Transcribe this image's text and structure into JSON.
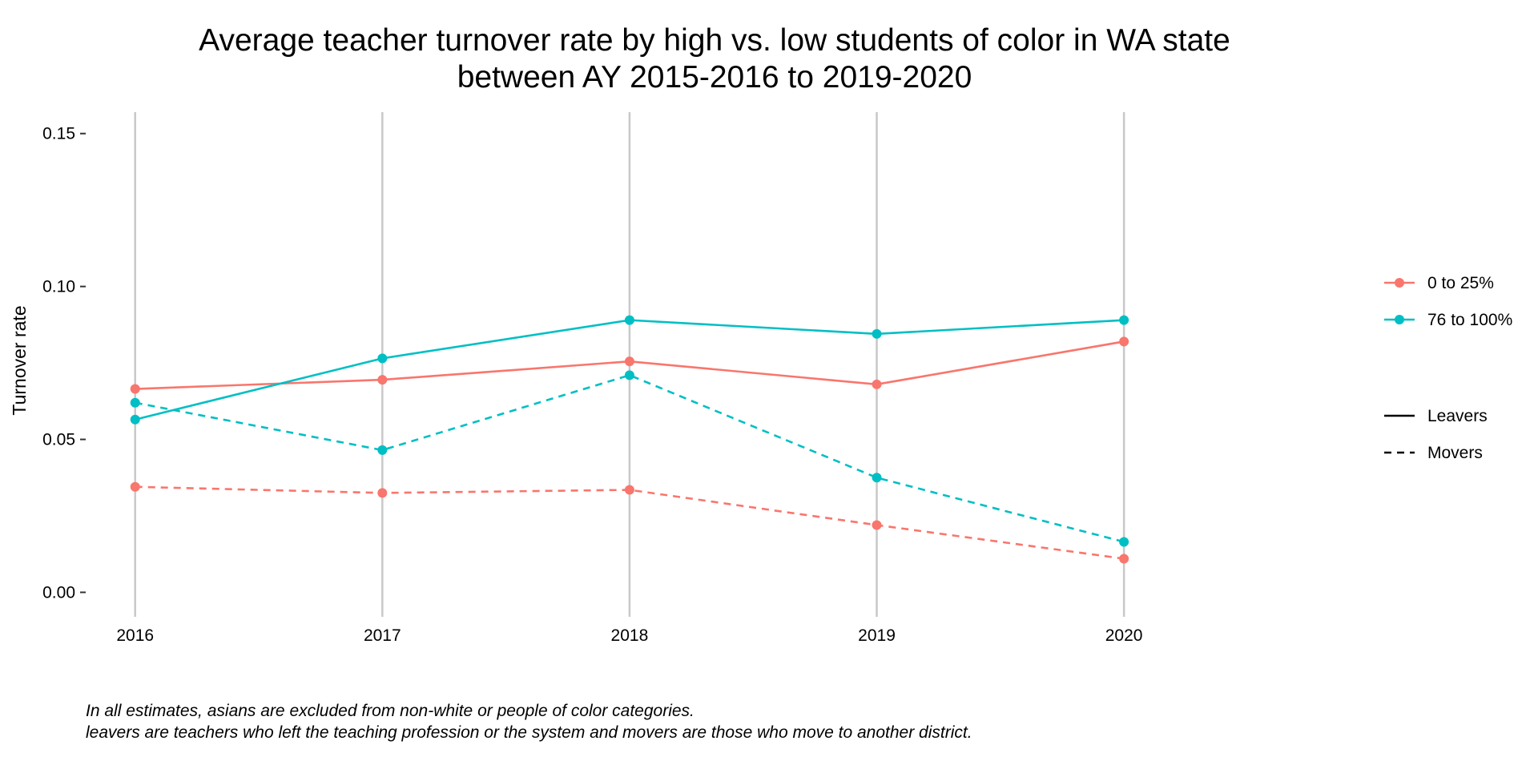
{
  "chart_data": {
    "type": "line",
    "title": "Average teacher turnover rate by high vs. low students of color in WA state",
    "subtitle": "between AY 2015-2016 to 2019-2020",
    "xlabel": "",
    "ylabel": "Turnover rate",
    "x": [
      2016,
      2017,
      2018,
      2019,
      2020
    ],
    "x_tick_labels": [
      "2016",
      "2017",
      "2018",
      "2019",
      "2020"
    ],
    "y_ticks": [
      0,
      0.05,
      0.1,
      0.15
    ],
    "y_tick_labels": [
      "0.00",
      "0.05",
      "0.10",
      "0.15"
    ],
    "xlim": [
      2015.8,
      2020.8
    ],
    "ylim": [
      -0.008,
      0.157
    ],
    "grid": "vertical",
    "legend_position": "right",
    "color_legend": [
      {
        "label": "0 to 25%",
        "color": "#F8766D"
      },
      {
        "label": "76 to 100%",
        "color": "#00BFC4"
      }
    ],
    "linetype_legend": [
      {
        "label": "Leavers",
        "dash": "solid"
      },
      {
        "label": "Movers",
        "dash": "dashed"
      }
    ],
    "series": [
      {
        "group": "0 to 25%",
        "type": "Leavers",
        "color": "#F8766D",
        "dash": "solid",
        "values": [
          0.0665,
          0.0695,
          0.0755,
          0.068,
          0.082
        ]
      },
      {
        "group": "76 to 100%",
        "type": "Leavers",
        "color": "#00BFC4",
        "dash": "solid",
        "values": [
          0.0565,
          0.0765,
          0.089,
          0.0845,
          0.089
        ]
      },
      {
        "group": "0 to 25%",
        "type": "Movers",
        "color": "#F8766D",
        "dash": "dashed",
        "values": [
          0.0345,
          0.0325,
          0.0335,
          0.022,
          0.011
        ]
      },
      {
        "group": "76 to 100%",
        "type": "Movers",
        "color": "#00BFC4",
        "dash": "dashed",
        "values": [
          0.062,
          0.0465,
          0.071,
          0.0375,
          0.0165
        ]
      }
    ]
  },
  "caption": {
    "line1": "In all estimates, asians are excluded from non-white or people of color categories.",
    "line2": "leavers are teachers who left the teaching profession or the system and movers are those who move to another district."
  }
}
